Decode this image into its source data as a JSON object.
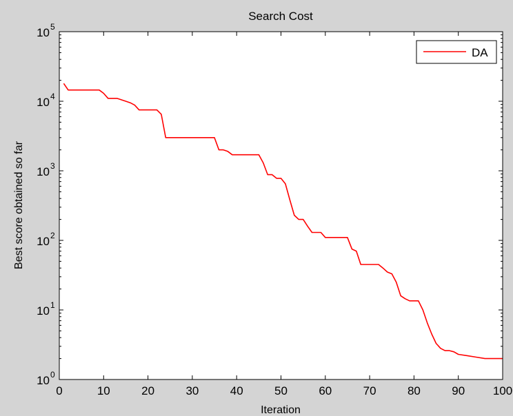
{
  "chart_data": {
    "type": "line",
    "title": "Search Cost",
    "xlabel": "Iteration",
    "ylabel": "Best score obtained so far",
    "yscale": "log",
    "xlim": [
      0,
      100
    ],
    "ylim": [
      1,
      100000
    ],
    "grid": false,
    "legend_position": "top-right",
    "x_ticks": [
      0,
      10,
      20,
      30,
      40,
      50,
      60,
      70,
      80,
      90,
      100
    ],
    "y_ticks": [
      {
        "value": 1,
        "base": "10",
        "exp": "0"
      },
      {
        "value": 10,
        "base": "10",
        "exp": "1"
      },
      {
        "value": 100,
        "base": "10",
        "exp": "2"
      },
      {
        "value": 1000,
        "base": "10",
        "exp": "3"
      },
      {
        "value": 10000,
        "base": "10",
        "exp": "4"
      },
      {
        "value": 100000,
        "base": "10",
        "exp": "5"
      }
    ],
    "series": [
      {
        "name": "DA",
        "color": "#ff0000",
        "points": [
          [
            1,
            18000
          ],
          [
            2,
            14500
          ],
          [
            8,
            14500
          ],
          [
            9,
            14500
          ],
          [
            10,
            13000
          ],
          [
            11,
            11000
          ],
          [
            13,
            11000
          ],
          [
            14,
            10500
          ],
          [
            15,
            10000
          ],
          [
            16,
            9500
          ],
          [
            17,
            8800
          ],
          [
            18,
            7500
          ],
          [
            22,
            7500
          ],
          [
            23,
            6500
          ],
          [
            24,
            3000
          ],
          [
            35,
            3000
          ],
          [
            36,
            2000
          ],
          [
            37,
            2000
          ],
          [
            38,
            1900
          ],
          [
            39,
            1700
          ],
          [
            45,
            1700
          ],
          [
            46,
            1300
          ],
          [
            47,
            880
          ],
          [
            48,
            880
          ],
          [
            49,
            780
          ],
          [
            50,
            780
          ],
          [
            51,
            650
          ],
          [
            52,
            380
          ],
          [
            53,
            230
          ],
          [
            54,
            200
          ],
          [
            55,
            200
          ],
          [
            56,
            160
          ],
          [
            57,
            130
          ],
          [
            59,
            130
          ],
          [
            60,
            110
          ],
          [
            65,
            110
          ],
          [
            66,
            75
          ],
          [
            67,
            70
          ],
          [
            68,
            45
          ],
          [
            72,
            45
          ],
          [
            73,
            40
          ],
          [
            74,
            35
          ],
          [
            75,
            33
          ],
          [
            76,
            25
          ],
          [
            77,
            16
          ],
          [
            78,
            14.5
          ],
          [
            79,
            13.5
          ],
          [
            81,
            13.5
          ],
          [
            82,
            10
          ],
          [
            83,
            6.5
          ],
          [
            84,
            4.5
          ],
          [
            85,
            3.3
          ],
          [
            86,
            2.8
          ],
          [
            87,
            2.6
          ],
          [
            88,
            2.6
          ],
          [
            89,
            2.5
          ],
          [
            90,
            2.3
          ],
          [
            92,
            2.2
          ],
          [
            94,
            2.1
          ],
          [
            96,
            2
          ],
          [
            100,
            2
          ]
        ]
      }
    ]
  }
}
